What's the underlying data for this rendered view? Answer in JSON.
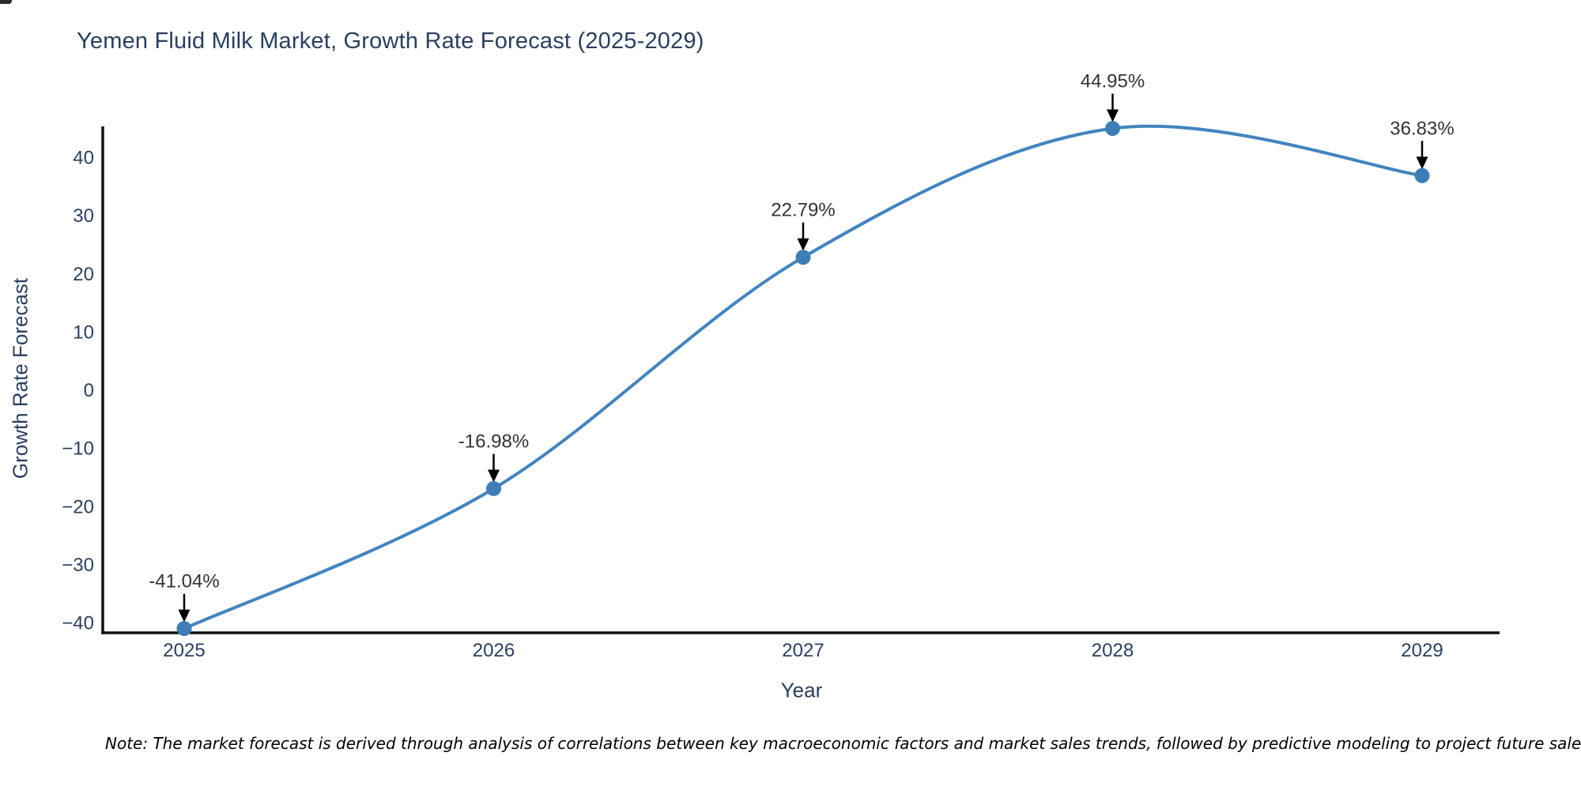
{
  "note": "Note: The market forecast is derived through analysis of correlations between key macroeconomic factors and market sales trends, followed by predictive modeling to project future sales",
  "chart_data": {
    "type": "line",
    "title": "Yemen Fluid Milk Market, Growth Rate Forecast (2025-2029)",
    "xlabel": "Year",
    "ylabel": "Growth Rate Forecast",
    "categories": [
      "2025",
      "2026",
      "2027",
      "2028",
      "2029"
    ],
    "series": [
      {
        "name": "Growth Rate Forecast",
        "values": [
          -41.04,
          -16.98,
          22.79,
          44.95,
          36.83
        ]
      }
    ],
    "point_labels": [
      "-41.04%",
      "-16.98%",
      "22.79%",
      "44.95%",
      "36.83%"
    ],
    "yticks": [
      40,
      30,
      20,
      10,
      0,
      -10,
      -20,
      -30,
      -40
    ],
    "ytick_labels": [
      "40",
      "30",
      "20",
      "10",
      "0",
      "−10",
      "−20",
      "−30",
      "−40"
    ],
    "ylim": [
      -45,
      47
    ],
    "grid": false,
    "legend_position": "none",
    "line_shape": "spline",
    "colors": {
      "line": "#4384bf",
      "marker": "#3f7db8",
      "axis_line": "#111111",
      "tick_text": "#2a3f5f",
      "annotation_text": "#333333",
      "arrow": "#000000"
    }
  }
}
